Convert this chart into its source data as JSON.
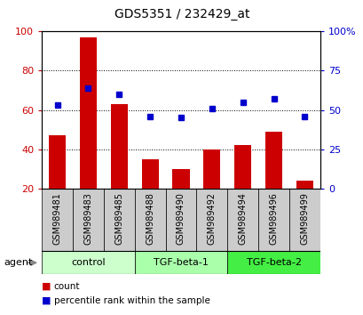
{
  "title": "GDS5351 / 232429_at",
  "samples": [
    "GSM989481",
    "GSM989483",
    "GSM989485",
    "GSM989488",
    "GSM989490",
    "GSM989492",
    "GSM989494",
    "GSM989496",
    "GSM989499"
  ],
  "bar_values": [
    47,
    97,
    63,
    35,
    30,
    40,
    42,
    49,
    24
  ],
  "percentile_values": [
    53,
    64,
    60,
    46,
    45,
    51,
    55,
    57,
    46
  ],
  "bar_color": "#cc0000",
  "percentile_color": "#0000cc",
  "ylim_left": [
    20,
    100
  ],
  "ylim_right": [
    0,
    100
  ],
  "yticks_left": [
    20,
    40,
    60,
    80,
    100
  ],
  "yticks_right": [
    0,
    25,
    50,
    75,
    100
  ],
  "ytick_labels_right": [
    "0",
    "25",
    "50",
    "75",
    "100%"
  ],
  "groups": [
    {
      "label": "control",
      "indices": [
        0,
        1,
        2
      ],
      "color": "#ccffcc"
    },
    {
      "label": "TGF-beta-1",
      "indices": [
        3,
        4,
        5
      ],
      "color": "#aaffaa"
    },
    {
      "label": "TGF-beta-2",
      "indices": [
        6,
        7,
        8
      ],
      "color": "#44ee44"
    }
  ],
  "agent_label": "agent",
  "legend_count_label": "count",
  "legend_pct_label": "percentile rank within the sample",
  "bar_width": 0.55,
  "sample_bg": "#cccccc",
  "title_fontsize": 10
}
